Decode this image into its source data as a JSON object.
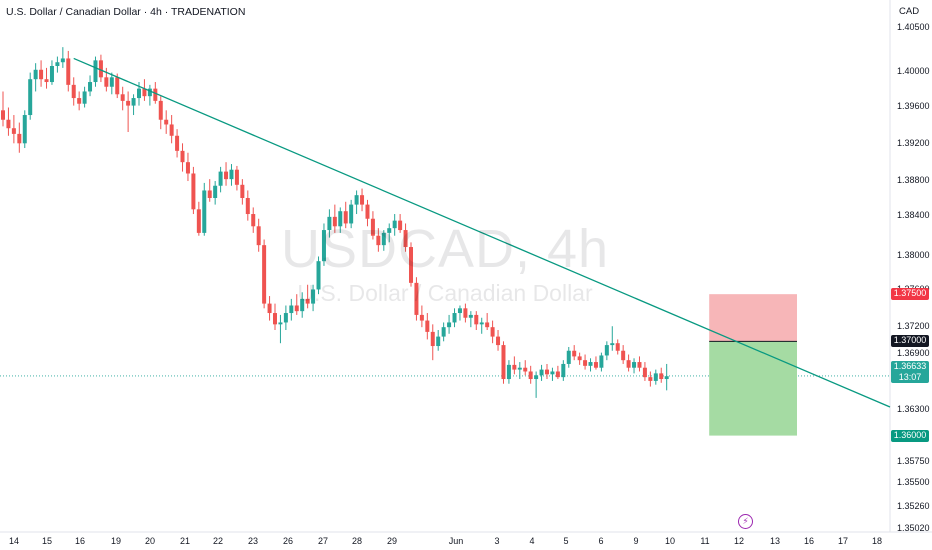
{
  "header": {
    "title": "U.S. Dollar / Canadian Dollar · 4h · TRADENATION",
    "currency": "CAD"
  },
  "watermark": {
    "symbol": "USDCAD, 4h",
    "description": "U.S. Dollar / Canadian Dollar"
  },
  "chart_data": {
    "type": "candlestick",
    "symbol": "USDCAD",
    "timeframe": "4h",
    "ylim": [
      1.3502,
      1.4062
    ],
    "y_ticks": [
      "1.40500",
      "1.40000",
      "1.39600",
      "1.39200",
      "1.38800",
      "1.38400",
      "1.38000",
      "1.37600",
      "1.37200",
      "1.36900",
      "1.36300",
      "1.35750",
      "1.35500",
      "1.35260",
      "1.35020"
    ],
    "x_ticks": [
      "14",
      "15",
      "16",
      "19",
      "20",
      "21",
      "22",
      "23",
      "26",
      "27",
      "28",
      "29",
      "Jun",
      "3",
      "4",
      "5",
      "6",
      "9",
      "10",
      "11",
      "12",
      "13",
      "16",
      "17",
      "18"
    ],
    "candles": [
      {
        "o": 1.3945,
        "h": 1.3965,
        "l": 1.3928,
        "c": 1.3935
      },
      {
        "o": 1.3935,
        "h": 1.3948,
        "l": 1.3918,
        "c": 1.3926
      },
      {
        "o": 1.3926,
        "h": 1.394,
        "l": 1.391,
        "c": 1.392
      },
      {
        "o": 1.392,
        "h": 1.3932,
        "l": 1.39,
        "c": 1.391
      },
      {
        "o": 1.391,
        "h": 1.3945,
        "l": 1.3905,
        "c": 1.394
      },
      {
        "o": 1.394,
        "h": 1.3985,
        "l": 1.3935,
        "c": 1.3978
      },
      {
        "o": 1.3978,
        "h": 1.3995,
        "l": 1.3965,
        "c": 1.3988
      },
      {
        "o": 1.3988,
        "h": 1.3998,
        "l": 1.397,
        "c": 1.3978
      },
      {
        "o": 1.3978,
        "h": 1.399,
        "l": 1.3968,
        "c": 1.3975
      },
      {
        "o": 1.3975,
        "h": 1.3998,
        "l": 1.3972,
        "c": 1.3992
      },
      {
        "o": 1.3992,
        "h": 1.4002,
        "l": 1.3985,
        "c": 1.3996
      },
      {
        "o": 1.3996,
        "h": 1.4012,
        "l": 1.399,
        "c": 1.4
      },
      {
        "o": 1.4,
        "h": 1.4008,
        "l": 1.3965,
        "c": 1.3972
      },
      {
        "o": 1.3972,
        "h": 1.398,
        "l": 1.395,
        "c": 1.3958
      },
      {
        "o": 1.3958,
        "h": 1.3965,
        "l": 1.3945,
        "c": 1.3952
      },
      {
        "o": 1.3952,
        "h": 1.397,
        "l": 1.3948,
        "c": 1.3965
      },
      {
        "o": 1.3965,
        "h": 1.3982,
        "l": 1.396,
        "c": 1.3975
      },
      {
        "o": 1.3975,
        "h": 1.4002,
        "l": 1.397,
        "c": 1.3998
      },
      {
        "o": 1.3998,
        "h": 1.4004,
        "l": 1.3975,
        "c": 1.398
      },
      {
        "o": 1.398,
        "h": 1.399,
        "l": 1.3965,
        "c": 1.397
      },
      {
        "o": 1.397,
        "h": 1.3985,
        "l": 1.3962,
        "c": 1.398
      },
      {
        "o": 1.398,
        "h": 1.3984,
        "l": 1.3958,
        "c": 1.3962
      },
      {
        "o": 1.3962,
        "h": 1.397,
        "l": 1.3945,
        "c": 1.3955
      },
      {
        "o": 1.3955,
        "h": 1.3965,
        "l": 1.3922,
        "c": 1.395
      },
      {
        "o": 1.395,
        "h": 1.3962,
        "l": 1.394,
        "c": 1.3958
      },
      {
        "o": 1.3958,
        "h": 1.3975,
        "l": 1.395,
        "c": 1.3968
      },
      {
        "o": 1.3968,
        "h": 1.3978,
        "l": 1.3955,
        "c": 1.396
      },
      {
        "o": 1.396,
        "h": 1.3972,
        "l": 1.395,
        "c": 1.3968
      },
      {
        "o": 1.3968,
        "h": 1.3975,
        "l": 1.3952,
        "c": 1.3955
      },
      {
        "o": 1.3955,
        "h": 1.396,
        "l": 1.3925,
        "c": 1.3935
      },
      {
        "o": 1.3935,
        "h": 1.3945,
        "l": 1.392,
        "c": 1.393
      },
      {
        "o": 1.393,
        "h": 1.394,
        "l": 1.391,
        "c": 1.3918
      },
      {
        "o": 1.3918,
        "h": 1.3925,
        "l": 1.3895,
        "c": 1.3902
      },
      {
        "o": 1.3902,
        "h": 1.391,
        "l": 1.388,
        "c": 1.389
      },
      {
        "o": 1.389,
        "h": 1.39,
        "l": 1.387,
        "c": 1.3878
      },
      {
        "o": 1.3878,
        "h": 1.3885,
        "l": 1.3835,
        "c": 1.384
      },
      {
        "o": 1.384,
        "h": 1.3848,
        "l": 1.3812,
        "c": 1.3815
      },
      {
        "o": 1.3815,
        "h": 1.3868,
        "l": 1.3812,
        "c": 1.386
      },
      {
        "o": 1.386,
        "h": 1.3872,
        "l": 1.3848,
        "c": 1.3852
      },
      {
        "o": 1.3852,
        "h": 1.387,
        "l": 1.3845,
        "c": 1.3865
      },
      {
        "o": 1.3865,
        "h": 1.3885,
        "l": 1.3858,
        "c": 1.388
      },
      {
        "o": 1.388,
        "h": 1.389,
        "l": 1.3865,
        "c": 1.3872
      },
      {
        "o": 1.3872,
        "h": 1.3888,
        "l": 1.3865,
        "c": 1.3882
      },
      {
        "o": 1.3882,
        "h": 1.3886,
        "l": 1.386,
        "c": 1.3866
      },
      {
        "o": 1.3866,
        "h": 1.3872,
        "l": 1.3845,
        "c": 1.3852
      },
      {
        "o": 1.3852,
        "h": 1.386,
        "l": 1.3828,
        "c": 1.3835
      },
      {
        "o": 1.3835,
        "h": 1.3842,
        "l": 1.3815,
        "c": 1.3822
      },
      {
        "o": 1.3822,
        "h": 1.383,
        "l": 1.3795,
        "c": 1.3802
      },
      {
        "o": 1.3802,
        "h": 1.3808,
        "l": 1.3735,
        "c": 1.374
      },
      {
        "o": 1.374,
        "h": 1.3748,
        "l": 1.3722,
        "c": 1.373
      },
      {
        "o": 1.373,
        "h": 1.374,
        "l": 1.3712,
        "c": 1.3718
      },
      {
        "o": 1.3718,
        "h": 1.3728,
        "l": 1.3698,
        "c": 1.372
      },
      {
        "o": 1.372,
        "h": 1.3738,
        "l": 1.3712,
        "c": 1.373
      },
      {
        "o": 1.373,
        "h": 1.3745,
        "l": 1.3722,
        "c": 1.3738
      },
      {
        "o": 1.3738,
        "h": 1.375,
        "l": 1.3728,
        "c": 1.3732
      },
      {
        "o": 1.3732,
        "h": 1.3752,
        "l": 1.3725,
        "c": 1.3745
      },
      {
        "o": 1.3745,
        "h": 1.376,
        "l": 1.3735,
        "c": 1.374
      },
      {
        "o": 1.374,
        "h": 1.376,
        "l": 1.3732,
        "c": 1.3755
      },
      {
        "o": 1.3755,
        "h": 1.379,
        "l": 1.375,
        "c": 1.3785
      },
      {
        "o": 1.3785,
        "h": 1.3825,
        "l": 1.378,
        "c": 1.3818
      },
      {
        "o": 1.3818,
        "h": 1.384,
        "l": 1.381,
        "c": 1.3832
      },
      {
        "o": 1.3832,
        "h": 1.3845,
        "l": 1.3815,
        "c": 1.3822
      },
      {
        "o": 1.3822,
        "h": 1.3842,
        "l": 1.3815,
        "c": 1.3838
      },
      {
        "o": 1.3838,
        "h": 1.3848,
        "l": 1.382,
        "c": 1.3825
      },
      {
        "o": 1.3825,
        "h": 1.385,
        "l": 1.382,
        "c": 1.3845
      },
      {
        "o": 1.3845,
        "h": 1.386,
        "l": 1.3835,
        "c": 1.3855
      },
      {
        "o": 1.3855,
        "h": 1.3862,
        "l": 1.3838,
        "c": 1.3845
      },
      {
        "o": 1.3845,
        "h": 1.385,
        "l": 1.3822,
        "c": 1.383
      },
      {
        "o": 1.383,
        "h": 1.3838,
        "l": 1.3808,
        "c": 1.3812
      },
      {
        "o": 1.3812,
        "h": 1.382,
        "l": 1.3795,
        "c": 1.3802
      },
      {
        "o": 1.3802,
        "h": 1.3818,
        "l": 1.3796,
        "c": 1.3815
      },
      {
        "o": 1.3815,
        "h": 1.3825,
        "l": 1.3805,
        "c": 1.382
      },
      {
        "o": 1.382,
        "h": 1.3835,
        "l": 1.3812,
        "c": 1.3828
      },
      {
        "o": 1.3828,
        "h": 1.3835,
        "l": 1.3815,
        "c": 1.3818
      },
      {
        "o": 1.3818,
        "h": 1.3825,
        "l": 1.3795,
        "c": 1.38
      },
      {
        "o": 1.38,
        "h": 1.3805,
        "l": 1.3758,
        "c": 1.3762
      },
      {
        "o": 1.3762,
        "h": 1.3768,
        "l": 1.3722,
        "c": 1.3728
      },
      {
        "o": 1.3728,
        "h": 1.3738,
        "l": 1.3715,
        "c": 1.3722
      },
      {
        "o": 1.3722,
        "h": 1.373,
        "l": 1.3702,
        "c": 1.371
      },
      {
        "o": 1.371,
        "h": 1.3718,
        "l": 1.368,
        "c": 1.3695
      },
      {
        "o": 1.3695,
        "h": 1.3712,
        "l": 1.369,
        "c": 1.3705
      },
      {
        "o": 1.3705,
        "h": 1.372,
        "l": 1.37,
        "c": 1.3715
      },
      {
        "o": 1.3715,
        "h": 1.3728,
        "l": 1.3708,
        "c": 1.372
      },
      {
        "o": 1.372,
        "h": 1.3735,
        "l": 1.3715,
        "c": 1.373
      },
      {
        "o": 1.373,
        "h": 1.3738,
        "l": 1.3722,
        "c": 1.3735
      },
      {
        "o": 1.3735,
        "h": 1.374,
        "l": 1.372,
        "c": 1.3725
      },
      {
        "o": 1.3725,
        "h": 1.3732,
        "l": 1.3715,
        "c": 1.3728
      },
      {
        "o": 1.3728,
        "h": 1.3732,
        "l": 1.3712,
        "c": 1.3718
      },
      {
        "o": 1.3718,
        "h": 1.3725,
        "l": 1.3708,
        "c": 1.372
      },
      {
        "o": 1.372,
        "h": 1.373,
        "l": 1.3712,
        "c": 1.3715
      },
      {
        "o": 1.3715,
        "h": 1.3722,
        "l": 1.3698,
        "c": 1.3705
      },
      {
        "o": 1.3705,
        "h": 1.3712,
        "l": 1.369,
        "c": 1.3696
      },
      {
        "o": 1.3696,
        "h": 1.37,
        "l": 1.3655,
        "c": 1.366
      },
      {
        "o": 1.366,
        "h": 1.368,
        "l": 1.3655,
        "c": 1.3675
      },
      {
        "o": 1.3675,
        "h": 1.3684,
        "l": 1.3665,
        "c": 1.367
      },
      {
        "o": 1.367,
        "h": 1.3678,
        "l": 1.366,
        "c": 1.3672
      },
      {
        "o": 1.3672,
        "h": 1.368,
        "l": 1.3664,
        "c": 1.3668
      },
      {
        "o": 1.3668,
        "h": 1.3674,
        "l": 1.3655,
        "c": 1.366
      },
      {
        "o": 1.366,
        "h": 1.3668,
        "l": 1.364,
        "c": 1.3664
      },
      {
        "o": 1.3664,
        "h": 1.3675,
        "l": 1.3658,
        "c": 1.367
      },
      {
        "o": 1.367,
        "h": 1.3676,
        "l": 1.366,
        "c": 1.3665
      },
      {
        "o": 1.3665,
        "h": 1.3672,
        "l": 1.3658,
        "c": 1.3668
      },
      {
        "o": 1.3668,
        "h": 1.3674,
        "l": 1.366,
        "c": 1.3662
      },
      {
        "o": 1.3662,
        "h": 1.368,
        "l": 1.3658,
        "c": 1.3676
      },
      {
        "o": 1.3676,
        "h": 1.3694,
        "l": 1.3672,
        "c": 1.369
      },
      {
        "o": 1.369,
        "h": 1.3696,
        "l": 1.368,
        "c": 1.3684
      },
      {
        "o": 1.3684,
        "h": 1.3688,
        "l": 1.3675,
        "c": 1.368
      },
      {
        "o": 1.368,
        "h": 1.3686,
        "l": 1.367,
        "c": 1.3674
      },
      {
        "o": 1.3674,
        "h": 1.3682,
        "l": 1.3668,
        "c": 1.3678
      },
      {
        "o": 1.3678,
        "h": 1.3684,
        "l": 1.367,
        "c": 1.3672
      },
      {
        "o": 1.3672,
        "h": 1.3688,
        "l": 1.3668,
        "c": 1.3685
      },
      {
        "o": 1.3685,
        "h": 1.37,
        "l": 1.368,
        "c": 1.3696
      },
      {
        "o": 1.3696,
        "h": 1.3716,
        "l": 1.369,
        "c": 1.3698
      },
      {
        "o": 1.3698,
        "h": 1.3702,
        "l": 1.3686,
        "c": 1.369
      },
      {
        "o": 1.369,
        "h": 1.3696,
        "l": 1.3676,
        "c": 1.368
      },
      {
        "o": 1.368,
        "h": 1.3686,
        "l": 1.3668,
        "c": 1.3672
      },
      {
        "o": 1.3672,
        "h": 1.3682,
        "l": 1.3666,
        "c": 1.3678
      },
      {
        "o": 1.3678,
        "h": 1.3684,
        "l": 1.3668,
        "c": 1.3672
      },
      {
        "o": 1.3672,
        "h": 1.3678,
        "l": 1.3658,
        "c": 1.3662
      },
      {
        "o": 1.3662,
        "h": 1.3668,
        "l": 1.3652,
        "c": 1.3658
      },
      {
        "o": 1.3658,
        "h": 1.367,
        "l": 1.3654,
        "c": 1.3666
      },
      {
        "o": 1.3666,
        "h": 1.3672,
        "l": 1.3656,
        "c": 1.366
      },
      {
        "o": 1.366,
        "h": 1.3676,
        "l": 1.3648,
        "c": 1.3663
      }
    ],
    "trendline": {
      "from": {
        "index": 13,
        "price": 1.4
      },
      "to": {
        "index": 161,
        "price": 1.3628
      }
    },
    "position": {
      "entry": 1.37,
      "stop": 1.375,
      "target": 1.36,
      "start_index": 130,
      "end_index": 137
    },
    "current_price": 1.36633,
    "countdown": "13:07",
    "price_labels": {
      "stop": "1.37500",
      "entry": "1.37000",
      "current": "1.36633",
      "target": "1.36000"
    },
    "colors": {
      "up": "#26a69a",
      "down": "#ef5350",
      "trend": "#089981",
      "stop_zone": "#f7b6b8",
      "target_zone": "#a5dba3"
    }
  }
}
